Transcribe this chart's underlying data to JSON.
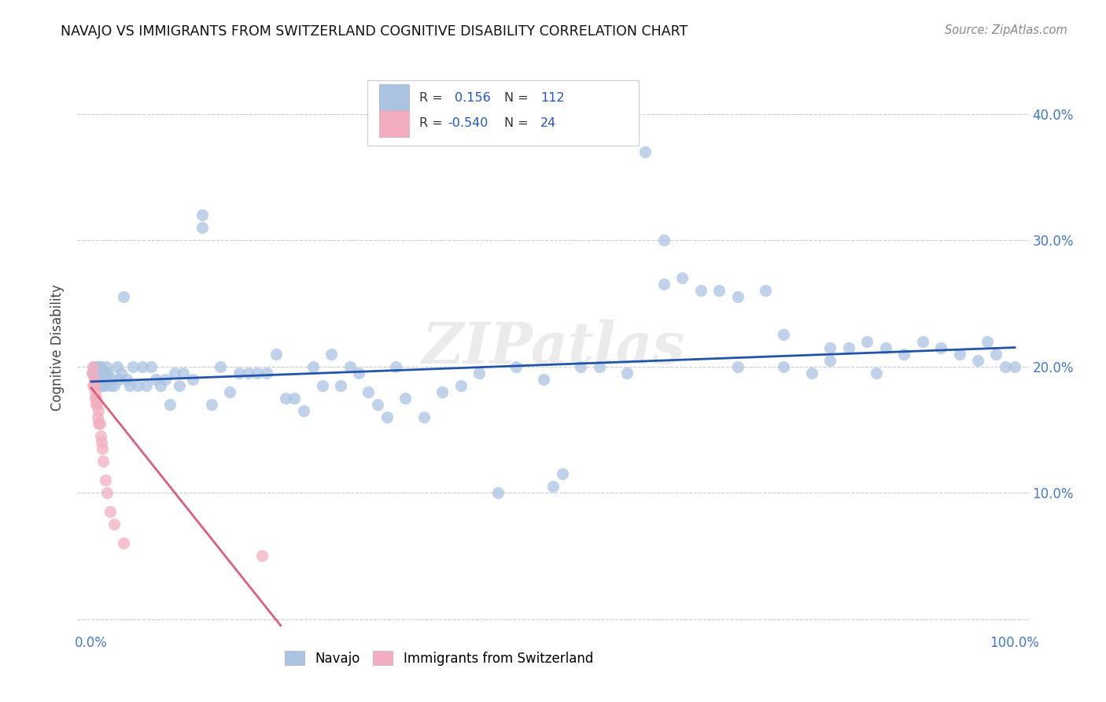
{
  "title": "NAVAJO VS IMMIGRANTS FROM SWITZERLAND COGNITIVE DISABILITY CORRELATION CHART",
  "source": "Source: ZipAtlas.com",
  "ylabel": "Cognitive Disability",
  "xlim": [
    -0.015,
    1.015
  ],
  "ylim": [
    -0.01,
    0.44
  ],
  "navajo_R": 0.156,
  "navajo_N": 112,
  "swiss_R": -0.54,
  "swiss_N": 24,
  "navajo_color": "#aac4e2",
  "swiss_color": "#f2aec0",
  "navajo_line_color": "#2255aa",
  "swiss_line_color": "#d9607a",
  "watermark": "ZIPatlas",
  "nav_line_x0": 0.0,
  "nav_line_x1": 1.0,
  "nav_line_y0": 0.188,
  "nav_line_y1": 0.215,
  "swiss_line_x0": 0.0,
  "swiss_line_x1": 0.205,
  "swiss_line_y0": 0.183,
  "swiss_line_y1": -0.005,
  "navajo_x": [
    0.002,
    0.003,
    0.003,
    0.003,
    0.004,
    0.004,
    0.005,
    0.005,
    0.006,
    0.006,
    0.007,
    0.007,
    0.008,
    0.008,
    0.009,
    0.009,
    0.01,
    0.01,
    0.011,
    0.012,
    0.012,
    0.013,
    0.014,
    0.015,
    0.016,
    0.017,
    0.018,
    0.02,
    0.022,
    0.025,
    0.028,
    0.03,
    0.032,
    0.035,
    0.038,
    0.042,
    0.045,
    0.05,
    0.055,
    0.06,
    0.065,
    0.07,
    0.075,
    0.08,
    0.085,
    0.09,
    0.095,
    0.1,
    0.11,
    0.12,
    0.13,
    0.14,
    0.15,
    0.16,
    0.17,
    0.18,
    0.19,
    0.2,
    0.21,
    0.22,
    0.23,
    0.24,
    0.25,
    0.26,
    0.27,
    0.28,
    0.29,
    0.3,
    0.31,
    0.32,
    0.33,
    0.34,
    0.36,
    0.38,
    0.4,
    0.42,
    0.44,
    0.46,
    0.49,
    0.51,
    0.53,
    0.55,
    0.58,
    0.6,
    0.62,
    0.64,
    0.66,
    0.68,
    0.7,
    0.73,
    0.75,
    0.78,
    0.8,
    0.82,
    0.84,
    0.86,
    0.88,
    0.9,
    0.92,
    0.94,
    0.96,
    0.97,
    0.98,
    0.99,
    1.0,
    0.12,
    0.5,
    0.62,
    0.7,
    0.75,
    0.8,
    0.85
  ],
  "navajo_y": [
    0.195,
    0.2,
    0.195,
    0.19,
    0.195,
    0.19,
    0.2,
    0.195,
    0.2,
    0.195,
    0.19,
    0.195,
    0.19,
    0.195,
    0.19,
    0.2,
    0.195,
    0.2,
    0.19,
    0.195,
    0.185,
    0.19,
    0.185,
    0.195,
    0.2,
    0.19,
    0.195,
    0.185,
    0.19,
    0.185,
    0.2,
    0.19,
    0.195,
    0.255,
    0.19,
    0.185,
    0.2,
    0.185,
    0.2,
    0.185,
    0.2,
    0.19,
    0.185,
    0.19,
    0.17,
    0.195,
    0.185,
    0.195,
    0.19,
    0.31,
    0.17,
    0.2,
    0.18,
    0.195,
    0.195,
    0.195,
    0.195,
    0.21,
    0.175,
    0.175,
    0.165,
    0.2,
    0.185,
    0.21,
    0.185,
    0.2,
    0.195,
    0.18,
    0.17,
    0.16,
    0.2,
    0.175,
    0.16,
    0.18,
    0.185,
    0.195,
    0.1,
    0.2,
    0.19,
    0.115,
    0.2,
    0.2,
    0.195,
    0.37,
    0.3,
    0.27,
    0.26,
    0.26,
    0.255,
    0.26,
    0.2,
    0.195,
    0.205,
    0.215,
    0.22,
    0.215,
    0.21,
    0.22,
    0.215,
    0.21,
    0.205,
    0.22,
    0.21,
    0.2,
    0.2,
    0.32,
    0.105,
    0.265,
    0.2,
    0.225,
    0.215,
    0.195
  ],
  "swiss_x": [
    0.001,
    0.002,
    0.002,
    0.003,
    0.003,
    0.004,
    0.004,
    0.005,
    0.005,
    0.006,
    0.007,
    0.008,
    0.008,
    0.009,
    0.01,
    0.011,
    0.012,
    0.013,
    0.015,
    0.017,
    0.02,
    0.025,
    0.035,
    0.185
  ],
  "swiss_y": [
    0.195,
    0.185,
    0.2,
    0.19,
    0.185,
    0.18,
    0.175,
    0.175,
    0.17,
    0.17,
    0.16,
    0.155,
    0.165,
    0.155,
    0.145,
    0.14,
    0.135,
    0.125,
    0.11,
    0.1,
    0.085,
    0.075,
    0.06,
    0.05
  ]
}
